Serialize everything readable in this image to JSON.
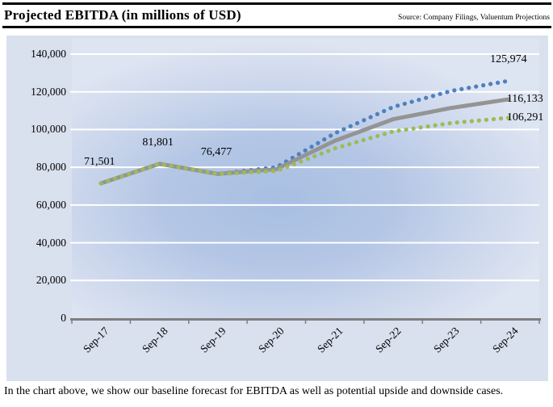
{
  "header": {
    "title": "Projected EBITDA (in millions of USD)",
    "source": "Source: Company Filings, Valuentum Projections"
  },
  "footer": {
    "caption": "In the chart above, we show our baseline forecast for EBITDA as well as potential upside and downside cases."
  },
  "colors": {
    "upside": "#4f81bd",
    "baseline": "#949494",
    "downside": "#9bbb59",
    "chart_background": "#d9e0ee",
    "gridline": "#ffffff",
    "axis": "#7f7f7f",
    "text": "#000000"
  },
  "chart_data": {
    "type": "line",
    "title": "Projected EBITDA (in millions of USD)",
    "categories": [
      "Sep-17",
      "Sep-18",
      "Sep-19",
      "Sep-20",
      "Sep-21",
      "Sep-22",
      "Sep-23",
      "Sep-24"
    ],
    "series": [
      {
        "name": "upside-case",
        "style": "dotted",
        "color_key": "upside",
        "values": [
          71501,
          81801,
          76477,
          80000,
          98000,
          112000,
          120500,
          125974
        ]
      },
      {
        "name": "baseline-forecast",
        "style": "solid",
        "color_key": "baseline",
        "values": [
          71501,
          81801,
          76477,
          79000,
          94000,
          105500,
          111500,
          116133
        ]
      },
      {
        "name": "downside-case",
        "style": "dotted",
        "color_key": "downside",
        "values": [
          71501,
          81801,
          76477,
          78000,
          90000,
          99000,
          103500,
          106291
        ]
      }
    ],
    "annotations": [
      {
        "text": "71,501",
        "series": 1,
        "index": 0,
        "placement": "above"
      },
      {
        "text": "81,801",
        "series": 1,
        "index": 1,
        "placement": "above"
      },
      {
        "text": "76,477",
        "series": 1,
        "index": 2,
        "placement": "above"
      },
      {
        "text": "125,974",
        "series": 0,
        "index": 7,
        "placement": "above"
      },
      {
        "text": "116,133",
        "series": 1,
        "index": 7,
        "placement": "right"
      },
      {
        "text": "106,291",
        "series": 2,
        "index": 7,
        "placement": "right"
      }
    ],
    "y_ticks": [
      "140,000",
      "120,000",
      "100,000",
      "80,000",
      "60,000",
      "40,000",
      "20,000",
      "0"
    ],
    "ylim": [
      0,
      140000
    ],
    "grid": "horizontal",
    "legend": "none"
  }
}
